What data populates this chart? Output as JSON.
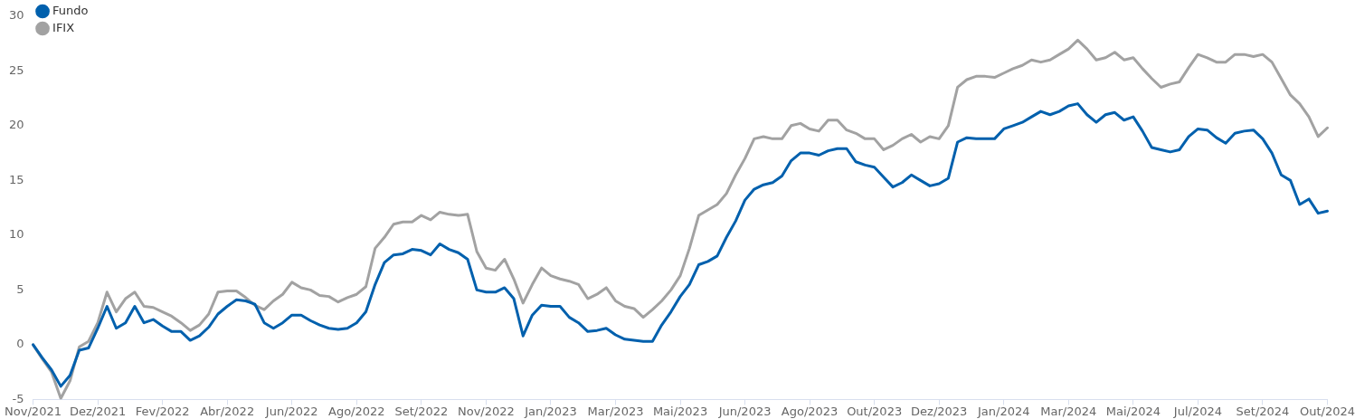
{
  "chart_data": {
    "type": "line",
    "categories": [
      "Nov/2021",
      null,
      null,
      null,
      null,
      null,
      null,
      "Dez/2021",
      null,
      null,
      null,
      null,
      null,
      null,
      "Fev/2022",
      null,
      null,
      null,
      null,
      null,
      null,
      "Abr/2022",
      null,
      null,
      null,
      null,
      null,
      null,
      "Jun/2022",
      null,
      null,
      null,
      null,
      null,
      null,
      "Ago/2022",
      null,
      null,
      null,
      null,
      null,
      null,
      "Set/2022",
      null,
      null,
      null,
      null,
      null,
      null,
      "Nov/2022",
      null,
      null,
      null,
      null,
      null,
      null,
      "Jan/2023",
      null,
      null,
      null,
      null,
      null,
      null,
      "Mar/2023",
      null,
      null,
      null,
      null,
      null,
      null,
      "Mai/2023",
      null,
      null,
      null,
      null,
      null,
      null,
      "Jun/2023",
      null,
      null,
      null,
      null,
      null,
      null,
      "Ago/2023",
      null,
      null,
      null,
      null,
      null,
      null,
      "Out/2023",
      null,
      null,
      null,
      null,
      null,
      null,
      "Dez/2023",
      null,
      null,
      null,
      null,
      null,
      null,
      "Jan/2024",
      null,
      null,
      null,
      null,
      null,
      null,
      "Mar/2024",
      null,
      null,
      null,
      null,
      null,
      null,
      "Mai/2024",
      null,
      null,
      null,
      null,
      null,
      null,
      "Jul/2024",
      null,
      null,
      null,
      null,
      null,
      null,
      "Set/2024",
      null,
      null,
      null,
      null,
      null,
      null,
      "Out/2024"
    ],
    "series": [
      {
        "name": "Fundo",
        "color": "#0060ad",
        "values": [
          0,
          -1.2,
          -2.3,
          -3.8,
          -2.8,
          -0.5,
          -0.3,
          1.5,
          3.5,
          1.5,
          2.0,
          3.5,
          2.0,
          2.3,
          1.7,
          1.2,
          1.2,
          0.4,
          0.8,
          1.6,
          2.8,
          3.5,
          4.1,
          4.0,
          3.7,
          2.0,
          1.5,
          2.0,
          2.7,
          2.7,
          2.2,
          1.8,
          1.5,
          1.4,
          1.5,
          2.0,
          3.0,
          5.5,
          7.5,
          8.2,
          8.3,
          8.7,
          8.6,
          8.2,
          9.2,
          8.7,
          8.4,
          7.8,
          5.0,
          4.8,
          4.8,
          5.2,
          4.2,
          0.8,
          2.7,
          3.6,
          3.5,
          3.5,
          2.5,
          2.0,
          1.2,
          1.3,
          1.5,
          0.9,
          0.5,
          0.4,
          0.3,
          0.3,
          1.8,
          3.0,
          4.4,
          5.5,
          7.3,
          7.6,
          8.1,
          9.8,
          11.3,
          13.2,
          14.2,
          14.6,
          14.8,
          15.4,
          16.8,
          17.5,
          17.5,
          17.3,
          17.7,
          17.9,
          17.9,
          16.7,
          16.4,
          16.2,
          15.3,
          14.4,
          14.8,
          15.5,
          15.0,
          14.5,
          14.7,
          15.2,
          18.5,
          18.9,
          18.8,
          18.8,
          18.8,
          19.7,
          20.0,
          20.3,
          20.8,
          21.3,
          21.0,
          21.3,
          21.8,
          22.0,
          21.0,
          20.3,
          21.0,
          21.2,
          20.5,
          20.8,
          19.5,
          18.0,
          17.8,
          17.6,
          17.8,
          19.0,
          19.7,
          19.6,
          18.9,
          18.4,
          19.3,
          19.5,
          19.6,
          18.8,
          17.5,
          15.5,
          15.0,
          12.8,
          13.3,
          12.0,
          12.2
        ]
      },
      {
        "name": "IFIX",
        "color": "#a2a2a2",
        "values": [
          0,
          -1.3,
          -2.5,
          -4.9,
          -3.3,
          -0.2,
          0.3,
          2.0,
          4.8,
          3.0,
          4.2,
          4.8,
          3.5,
          3.4,
          3.0,
          2.6,
          2.0,
          1.3,
          1.8,
          2.8,
          4.8,
          4.9,
          4.9,
          4.3,
          3.6,
          3.2,
          4.0,
          4.6,
          5.7,
          5.2,
          5.0,
          4.5,
          4.4,
          3.9,
          4.3,
          4.6,
          5.3,
          8.8,
          9.8,
          11.0,
          11.2,
          11.2,
          11.8,
          11.4,
          12.1,
          11.9,
          11.8,
          11.9,
          8.5,
          7.0,
          6.8,
          7.8,
          6.0,
          3.8,
          5.5,
          7.0,
          6.3,
          6.0,
          5.8,
          5.5,
          4.2,
          4.6,
          5.2,
          4.0,
          3.5,
          3.3,
          2.5,
          3.2,
          4.0,
          5.0,
          6.3,
          8.8,
          11.8,
          12.3,
          12.8,
          13.8,
          15.5,
          17.0,
          18.8,
          19.0,
          18.8,
          18.8,
          20.0,
          20.2,
          19.7,
          19.5,
          20.5,
          20.5,
          19.6,
          19.3,
          18.8,
          18.8,
          17.8,
          18.2,
          18.8,
          19.2,
          18.5,
          19.0,
          18.8,
          20.0,
          23.5,
          24.2,
          24.5,
          24.5,
          24.4,
          24.8,
          25.2,
          25.5,
          26.0,
          25.8,
          26.0,
          26.5,
          27.0,
          27.8,
          27.0,
          26.0,
          26.2,
          26.7,
          26.0,
          26.2,
          25.2,
          24.3,
          23.5,
          23.8,
          24.0,
          25.3,
          26.5,
          26.2,
          25.8,
          25.8,
          26.5,
          26.5,
          26.3,
          26.5,
          25.8,
          24.3,
          22.8,
          22.0,
          20.8,
          19.0,
          19.8
        ]
      }
    ],
    "ylim": [
      -5,
      30
    ],
    "yticks": [
      -5,
      0,
      5,
      10,
      15,
      20,
      25,
      30
    ],
    "grid": false,
    "legend": "top left",
    "marker": "none",
    "line_style": "solid"
  }
}
